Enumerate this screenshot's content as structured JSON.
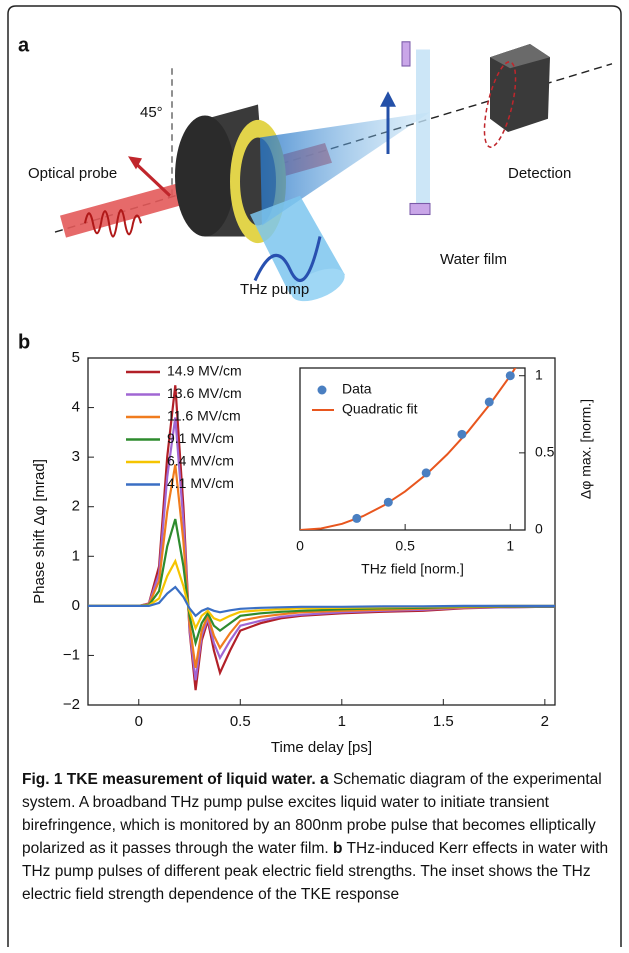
{
  "panel_a": {
    "label": "a",
    "angle": "45°",
    "probe": "Optical probe",
    "pump": "THz pump",
    "film": "Water film",
    "detection": "Detection"
  },
  "panel_b_label": "b",
  "chart_data": [
    {
      "type": "line",
      "x_label": "Time delay [ps]",
      "y_label": "Phase shift Δφ [mrad]",
      "xlim": [
        -0.25,
        2.05
      ],
      "xticks": [
        0,
        0.5,
        1,
        1.5,
        2
      ],
      "ylim": [
        -2,
        5
      ],
      "yticks": [
        {
          "value": -2,
          "label": "−2"
        },
        {
          "value": -1,
          "label": "−1"
        },
        0,
        1,
        2,
        3,
        4,
        5
      ],
      "legend": "upper left",
      "x": [
        -0.25,
        -0.2,
        -0.1,
        0,
        0.05,
        0.1,
        0.14,
        0.18,
        0.22,
        0.25,
        0.28,
        0.31,
        0.34,
        0.37,
        0.4,
        0.45,
        0.5,
        0.6,
        0.7,
        0.8,
        1.0,
        1.2,
        1.4,
        1.6,
        1.8,
        2.0,
        2.05
      ],
      "series": [
        {
          "name": "14.9 MV/cm",
          "color": "#b22028",
          "values": [
            0,
            0,
            0,
            0,
            0.05,
            0.8,
            3.0,
            4.45,
            2.0,
            -0.5,
            -1.7,
            -0.7,
            -0.3,
            -0.9,
            -1.35,
            -0.9,
            -0.5,
            -0.35,
            -0.25,
            -0.2,
            -0.15,
            -0.12,
            -0.1,
            -0.05,
            -0.03,
            -0.02,
            -0.02
          ]
        },
        {
          "name": "13.6 MV/cm",
          "color": "#a066d3",
          "values": [
            0,
            0,
            0,
            0,
            0.04,
            0.65,
            2.6,
            3.8,
            1.7,
            -0.45,
            -1.5,
            -0.6,
            -0.25,
            -0.75,
            -1.05,
            -0.7,
            -0.4,
            -0.3,
            -0.22,
            -0.18,
            -0.13,
            -0.1,
            -0.08,
            -0.04,
            -0.03,
            -0.02,
            -0.02
          ]
        },
        {
          "name": "11.6 MV/cm",
          "color": "#f07c1e",
          "values": [
            0,
            0,
            0,
            0,
            0.03,
            0.5,
            1.9,
            2.85,
            1.3,
            -0.35,
            -1.25,
            -0.5,
            -0.2,
            -0.6,
            -0.85,
            -0.55,
            -0.3,
            -0.22,
            -0.17,
            -0.13,
            -0.1,
            -0.08,
            -0.06,
            -0.03,
            -0.02,
            -0.01,
            -0.01
          ]
        },
        {
          "name": "9.1 MV/cm",
          "color": "#2e8b2e",
          "values": [
            0,
            0,
            0,
            0,
            0.02,
            0.3,
            1.2,
            1.75,
            0.8,
            -0.2,
            -0.75,
            -0.35,
            -0.15,
            -0.4,
            -0.5,
            -0.35,
            -0.2,
            -0.15,
            -0.12,
            -0.1,
            -0.07,
            -0.05,
            -0.04,
            -0.02,
            -0.01,
            -0.01,
            -0.01
          ]
        },
        {
          "name": "6.4 MV/cm",
          "color": "#f5c400",
          "values": [
            0,
            0,
            0,
            0,
            0.01,
            0.15,
            0.6,
            0.9,
            0.4,
            -0.1,
            -0.45,
            -0.2,
            -0.1,
            -0.25,
            -0.3,
            -0.2,
            -0.12,
            -0.09,
            -0.07,
            -0.05,
            -0.04,
            -0.03,
            -0.02,
            -0.01,
            0,
            0,
            0
          ]
        },
        {
          "name": "4.1 MV/cm",
          "color": "#3a6fc4",
          "values": [
            0,
            0,
            0,
            0,
            0,
            0.06,
            0.25,
            0.38,
            0.18,
            -0.05,
            -0.2,
            -0.1,
            -0.05,
            -0.1,
            -0.13,
            -0.09,
            -0.06,
            -0.04,
            -0.03,
            -0.02,
            -0.02,
            -0.01,
            -0.01,
            0,
            0,
            0,
            0
          ]
        }
      ]
    },
    {
      "type": "scatter",
      "x_label": "THz field [norm.]",
      "y_label": "Δφ max. [norm.]",
      "y_axis_side": "right",
      "xlim": [
        0,
        1.07
      ],
      "xticks": [
        0,
        0.5,
        1
      ],
      "ylim": [
        0,
        1.05
      ],
      "yticks": [
        0,
        0.5,
        1
      ],
      "legend": "upper left",
      "series": [
        {
          "name": "Data",
          "color": "#4a7fc1",
          "mode": "markers",
          "x": [
            0.27,
            0.42,
            0.6,
            0.77,
            0.9,
            1.0
          ],
          "values": [
            0.075,
            0.18,
            0.37,
            0.62,
            0.83,
            1.0
          ]
        },
        {
          "name": "Quadratic fit",
          "color": "#e8561e",
          "mode": "line",
          "x": [
            0,
            0.1,
            0.2,
            0.3,
            0.4,
            0.5,
            0.6,
            0.7,
            0.8,
            0.9,
            1.0,
            1.1
          ],
          "values": [
            0,
            0.01,
            0.04,
            0.09,
            0.16,
            0.25,
            0.36,
            0.49,
            0.64,
            0.81,
            1.0,
            1.21
          ]
        }
      ]
    }
  ],
  "caption": {
    "title": "Fig. 1 TKE measurement of liquid water.",
    "a_label": "a",
    "a_text": "Schematic diagram of the experimental system. A broadband THz pump pulse excites liquid water to initiate transient birefringence, which is monitored by an 800nm probe pulse that becomes elliptically polarized as it passes through the water film.",
    "b_label": "b",
    "b_text": "THz-induced Kerr effects in water with THz pump pulses of different peak electric field strengths. The inset shows the THz electric field strength dependence of the TKE response"
  }
}
